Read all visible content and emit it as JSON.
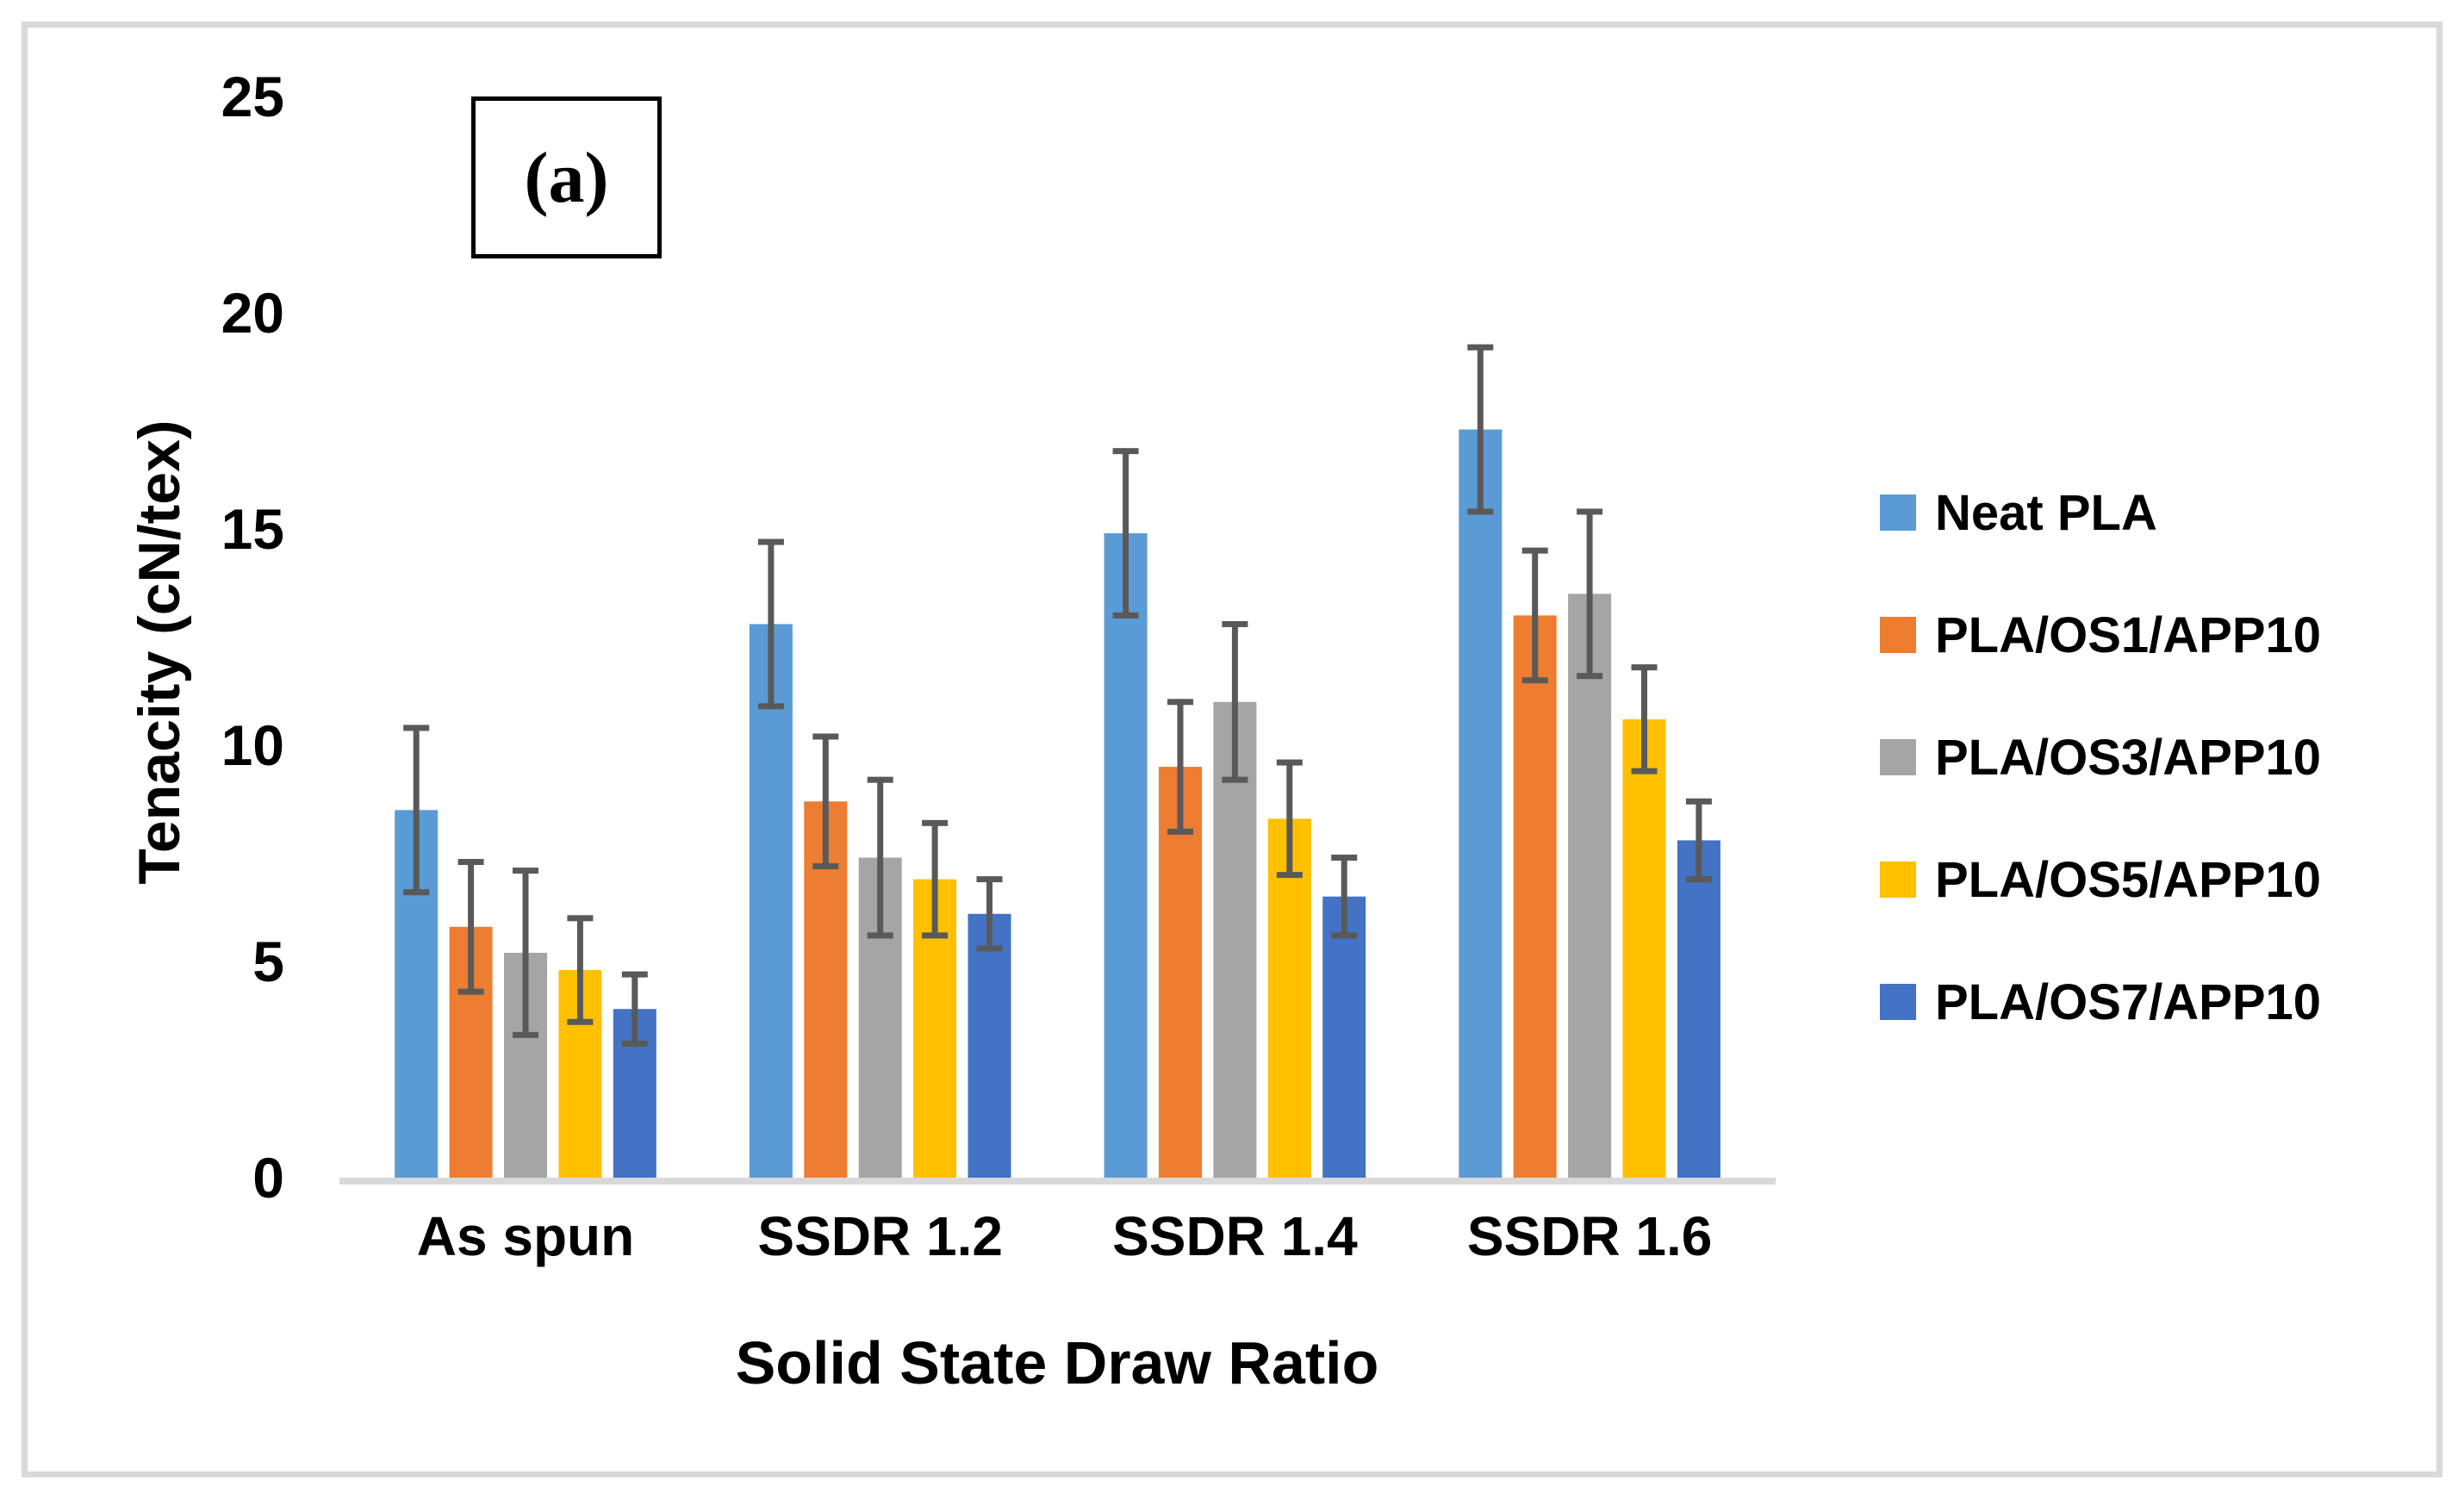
{
  "figure": {
    "annotation": "(a)",
    "frame_color": "#D9D9D9",
    "background": "#FFFFFF"
  },
  "chart_data": {
    "type": "bar",
    "title": "",
    "xlabel": "Solid State Draw Ratio",
    "ylabel": "Tenacity (cN/tex)",
    "ylim": [
      0,
      25
    ],
    "yticks": [
      0,
      5,
      10,
      15,
      20,
      25
    ],
    "grid": false,
    "legend_position": "right",
    "categories": [
      "As spun",
      "SSDR 1.2",
      "SSDR 1.4",
      "SSDR 1.6"
    ],
    "series": [
      {
        "name": "Neat PLA",
        "color": "#5B9BD5",
        "values": [
          8.5,
          12.8,
          14.9,
          17.3
        ],
        "errors": [
          1.9,
          1.9,
          1.9,
          1.9
        ]
      },
      {
        "name": "PLA/OS1/APP10",
        "color": "#ED7D31",
        "values": [
          5.8,
          8.7,
          9.5,
          13.0
        ],
        "errors": [
          1.5,
          1.5,
          1.5,
          1.5
        ]
      },
      {
        "name": "PLA/OS3/APP10",
        "color": "#A5A5A5",
        "values": [
          5.2,
          7.4,
          11.0,
          13.5
        ],
        "errors": [
          1.9,
          1.8,
          1.8,
          1.9
        ]
      },
      {
        "name": "PLA/OS5/APP10",
        "color": "#FFC000",
        "values": [
          4.8,
          6.9,
          8.3,
          10.6
        ],
        "errors": [
          1.2,
          1.3,
          1.3,
          1.2
        ]
      },
      {
        "name": "PLA/OS7/APP10",
        "color": "#4472C4",
        "values": [
          3.9,
          6.1,
          6.5,
          7.8
        ],
        "errors": [
          0.8,
          0.8,
          0.9,
          0.9
        ]
      }
    ],
    "error_bar_color": "#595959",
    "axis_line_color": "#D9D9D9"
  }
}
